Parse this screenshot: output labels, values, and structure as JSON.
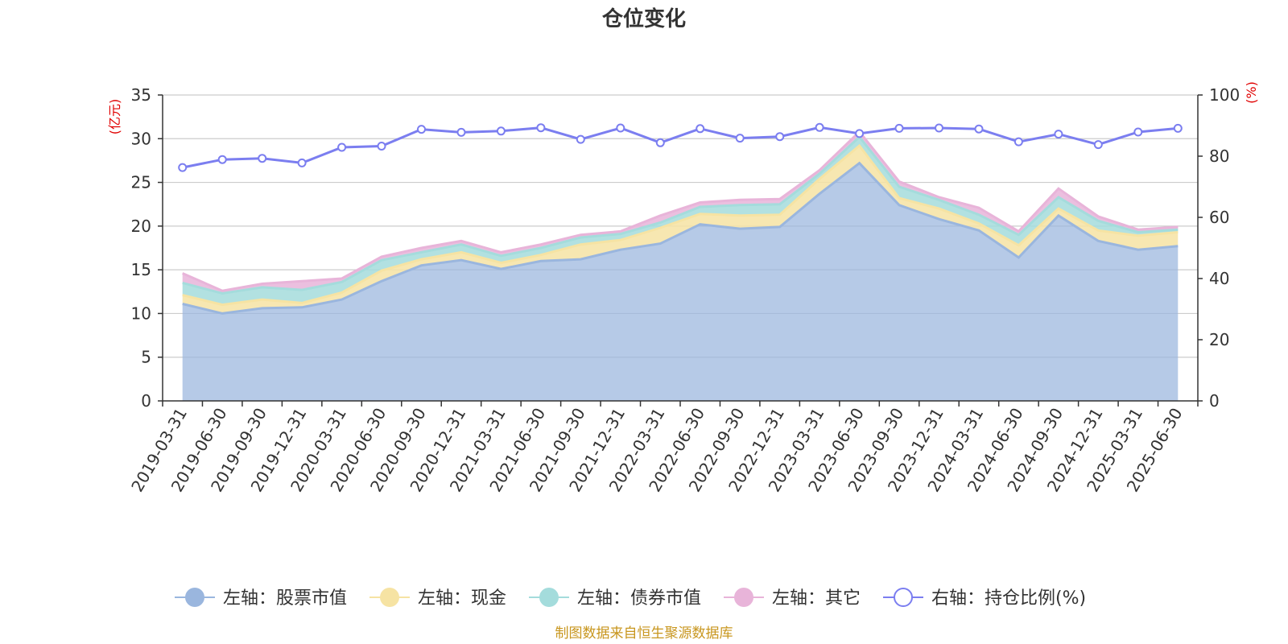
{
  "chart_data": {
    "type": "area",
    "title": "仓位变化",
    "left_axis_unit": "(亿元)",
    "right_axis_unit": "(%)",
    "left_ylim": [
      0,
      35
    ],
    "left_ticks": [
      0,
      5,
      10,
      15,
      20,
      25,
      30,
      35
    ],
    "right_ylim": [
      0,
      100
    ],
    "right_ticks": [
      0,
      20,
      40,
      60,
      80,
      100
    ],
    "grid": true,
    "legend_position": "bottom",
    "x": [
      "2019-03-31",
      "2019-06-30",
      "2019-09-30",
      "2019-12-31",
      "2020-03-31",
      "2020-06-30",
      "2020-09-30",
      "2020-12-31",
      "2021-03-31",
      "2021-06-30",
      "2021-09-30",
      "2021-12-31",
      "2022-03-31",
      "2022-06-30",
      "2022-09-30",
      "2022-12-31",
      "2023-03-31",
      "2023-06-30",
      "2023-09-30",
      "2023-12-31",
      "2024-03-31",
      "2024-06-30",
      "2024-09-30",
      "2024-12-31",
      "2025-03-31",
      "2025-06-30"
    ],
    "stacked_series": [
      {
        "name": "左轴：股票市值",
        "axis": "left",
        "color": "#9ab6de",
        "values": [
          11.1,
          10.0,
          10.6,
          10.7,
          11.6,
          13.7,
          15.5,
          16.1,
          15.1,
          16.0,
          16.2,
          17.3,
          18.0,
          20.2,
          19.7,
          19.9,
          23.7,
          27.2,
          22.4,
          20.8,
          19.5,
          16.4,
          21.2,
          18.3,
          17.3,
          17.7
        ]
      },
      {
        "name": "左轴：现金",
        "axis": "left",
        "color": "#f6e3a3",
        "values": [
          1.0,
          1.0,
          1.0,
          0.5,
          0.8,
          1.2,
          0.7,
          0.9,
          0.7,
          0.7,
          1.7,
          1.1,
          1.8,
          1.2,
          1.5,
          1.4,
          1.7,
          2.0,
          0.8,
          1.2,
          0.8,
          1.4,
          0.8,
          1.2,
          1.6,
          1.6
        ]
      },
      {
        "name": "左轴：债券市值",
        "axis": "left",
        "color": "#a4dcdc",
        "values": [
          1.4,
          1.3,
          1.4,
          1.5,
          1.2,
          1.2,
          0.8,
          0.9,
          0.8,
          0.8,
          0.8,
          0.7,
          0.6,
          0.8,
          1.2,
          1.2,
          0.6,
          1.0,
          1.3,
          1.0,
          1.0,
          1.2,
          1.3,
          1.1,
          0.4,
          0.3
        ]
      },
      {
        "name": "左轴：其它",
        "axis": "left",
        "color": "#e8b4d9",
        "values": [
          1.1,
          0.3,
          0.4,
          1.0,
          0.4,
          0.4,
          0.5,
          0.4,
          0.4,
          0.4,
          0.3,
          0.3,
          0.8,
          0.5,
          0.6,
          0.6,
          0.4,
          0.6,
          0.6,
          0.3,
          0.8,
          0.4,
          1.0,
          0.5,
          0.3,
          0.3
        ]
      }
    ],
    "line_series": {
      "name": "右轴：持仓比例(%)",
      "axis": "right",
      "color": "#7b7ef0",
      "values": [
        76.3,
        78.9,
        79.3,
        77.8,
        82.9,
        83.3,
        88.8,
        87.8,
        88.2,
        89.3,
        85.5,
        89.2,
        84.4,
        89.0,
        85.9,
        86.4,
        89.4,
        87.4,
        89.1,
        89.2,
        88.9,
        84.7,
        87.2,
        83.8,
        87.9,
        89.1
      ]
    },
    "source_note": "制图数据来自恒生聚源数据库"
  }
}
